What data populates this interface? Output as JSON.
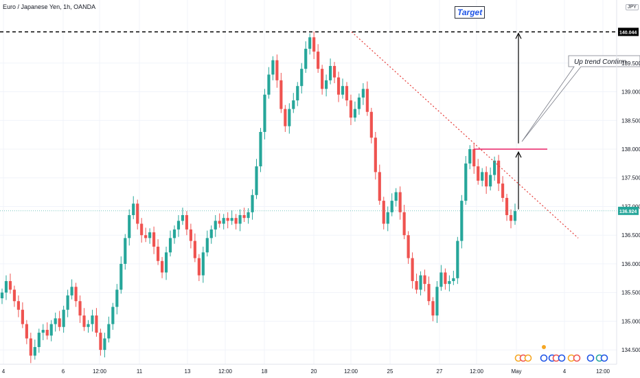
{
  "title": "Euro / Japanese Yen, 1h, OANDA",
  "currency": "JPY",
  "annotations": {
    "target_label": "Target",
    "callout_text": "Up trend Confirm"
  },
  "colors": {
    "up": "#26a69a",
    "down": "#ef5350",
    "resistance": "#e91e63",
    "trendline": "#e53935",
    "target_line": "#000000",
    "current_price_tag": "#26a69a",
    "target_tag": "#000000"
  },
  "chart_data": {
    "type": "candlestick",
    "symbol": "EURJPY",
    "timeframe": "1h",
    "y_ticks": [
      "140.044",
      "139.500",
      "139.000",
      "138.500",
      "138.000",
      "137.500",
      "137.000",
      "136.500",
      "136.000",
      "135.500",
      "135.000",
      "134.500"
    ],
    "y_tick_values": [
      140.044,
      139.5,
      139.0,
      138.5,
      138.0,
      137.5,
      137.0,
      136.5,
      136.0,
      135.5,
      135.0,
      134.5
    ],
    "x_ticks": [
      "4",
      "6",
      "12:00",
      "11",
      "13",
      "12:00",
      "18",
      "20",
      "12:00",
      "25",
      "27",
      "12:00",
      "May",
      "4",
      "12:00"
    ],
    "ylim": [
      134.25,
      140.6
    ],
    "target_level": 140.044,
    "resistance_level": 138.0,
    "current_price": "136.924",
    "current_price_value": 136.924,
    "closes": [
      135.5,
      135.7,
      135.55,
      135.35,
      135.2,
      134.95,
      134.7,
      134.4,
      134.55,
      134.8,
      134.85,
      134.75,
      134.95,
      135.05,
      134.9,
      135.2,
      135.45,
      135.6,
      135.35,
      135.1,
      134.9,
      134.95,
      135.1,
      134.8,
      134.5,
      134.7,
      134.95,
      135.25,
      135.55,
      136.0,
      136.45,
      136.85,
      137.05,
      136.7,
      136.5,
      136.45,
      136.55,
      136.3,
      136.05,
      135.85,
      136.2,
      136.45,
      136.6,
      136.75,
      136.85,
      136.6,
      136.4,
      136.1,
      135.8,
      136.2,
      136.45,
      136.6,
      136.75,
      136.7,
      136.8,
      136.75,
      136.8,
      136.7,
      136.85,
      136.8,
      136.9,
      137.2,
      137.7,
      138.3,
      138.95,
      139.3,
      139.55,
      139.2,
      138.7,
      138.4,
      138.7,
      138.85,
      139.1,
      139.4,
      139.75,
      139.95,
      139.7,
      139.4,
      139.05,
      139.2,
      139.45,
      139.25,
      138.95,
      139.1,
      138.85,
      138.55,
      138.7,
      138.9,
      139.05,
      138.65,
      138.2,
      137.6,
      137.1,
      136.7,
      136.9,
      137.1,
      137.25,
      136.9,
      136.5,
      136.1,
      135.7,
      135.55,
      135.8,
      135.65,
      135.35,
      135.1,
      135.6,
      135.85,
      135.65,
      135.7,
      135.75,
      136.4,
      137.1,
      137.75,
      138.0,
      137.7,
      137.45,
      137.6,
      137.35,
      137.55,
      137.8,
      137.4,
      137.15,
      136.85,
      136.75,
      136.92
    ]
  }
}
